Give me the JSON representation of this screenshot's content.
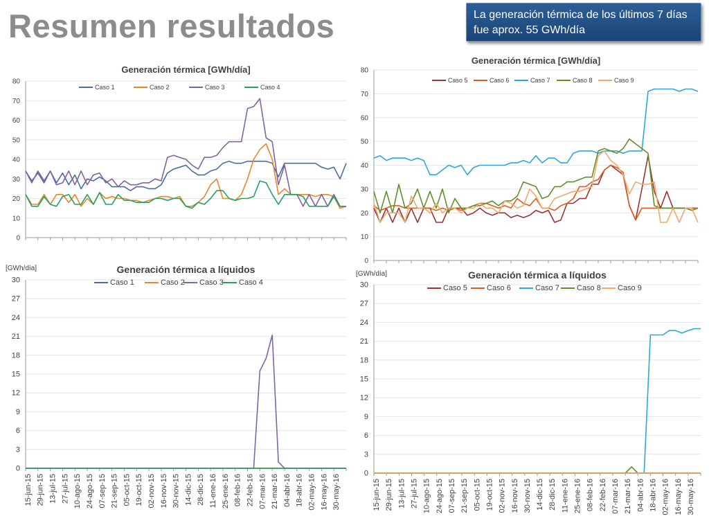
{
  "header": {
    "title": "Resumen resultados",
    "callout": "La generación térmica de los últimos 7 días fue aprox. 55 GWh/día"
  },
  "colors": {
    "caso1": "#4a6da0",
    "caso2": "#e8862e",
    "caso3": "#8064a2",
    "caso4": "#23a35a",
    "caso5": "#9b3333",
    "caso6": "#e05a1e",
    "caso7": "#2aa8d8",
    "caso8": "#5f8f2a",
    "caso9": "#f3a86a",
    "callout_bg": "#1f4e87"
  },
  "chart_data": [
    {
      "type": "line",
      "title": "Generación térmica [GWh/día]",
      "ylabel": "",
      "ylim": [
        0,
        80
      ],
      "yticks": [
        0,
        10,
        20,
        30,
        40,
        50,
        60,
        70,
        80
      ],
      "legend": "top",
      "x_count": 53,
      "series": [
        {
          "name": "Caso 1",
          "values": [
            34,
            29,
            33,
            28,
            34,
            28,
            33,
            27,
            32,
            25,
            30,
            29,
            31,
            29,
            26,
            26,
            26,
            24,
            26,
            26,
            25,
            25,
            27,
            33,
            35,
            36,
            37,
            34,
            32,
            32,
            34,
            35,
            38,
            39,
            38,
            38,
            39,
            39,
            39,
            39,
            38,
            31,
            38,
            38,
            38,
            38,
            38,
            38,
            36,
            35,
            36,
            30,
            38
          ]
        },
        {
          "name": "Caso 2",
          "values": [
            22,
            17,
            17,
            22,
            17,
            22,
            22,
            18,
            22,
            16,
            20,
            17,
            23,
            20,
            21,
            20,
            20,
            19,
            19,
            18,
            19,
            20,
            21,
            21,
            20,
            21,
            16,
            16,
            18,
            21,
            27,
            30,
            20,
            20,
            19,
            22,
            30,
            40,
            45,
            48,
            40,
            22,
            25,
            22,
            22,
            22,
            22,
            21,
            22,
            22,
            21,
            15,
            16
          ]
        },
        {
          "name": "Caso 3",
          "values": [
            34,
            28,
            34,
            29,
            34,
            27,
            28,
            34,
            27,
            34,
            27,
            32,
            33,
            28,
            30,
            26,
            29,
            27,
            27,
            28,
            28,
            30,
            29,
            41,
            42,
            41,
            40,
            37,
            35,
            41,
            41,
            42,
            46,
            49,
            49,
            49,
            66,
            67,
            71,
            51,
            49,
            27,
            37,
            22,
            22,
            16,
            22,
            16,
            22,
            16,
            22,
            16,
            16
          ]
        },
        {
          "name": "Caso 4",
          "values": [
            22,
            16,
            16,
            21,
            17,
            16,
            21,
            22,
            17,
            17,
            22,
            17,
            23,
            17,
            17,
            22,
            19,
            19,
            18,
            18,
            18,
            20,
            20,
            19,
            20,
            20,
            16,
            15,
            18,
            17,
            20,
            24,
            24,
            20,
            19,
            20,
            20,
            21,
            29,
            28,
            22,
            17,
            22,
            22,
            22,
            21,
            16,
            16,
            16,
            16,
            21,
            16,
            16
          ]
        }
      ]
    },
    {
      "type": "line",
      "title": "Generación térmica [GWh/día]",
      "ylabel": "",
      "ylim": [
        0,
        80
      ],
      "yticks": [
        0,
        10,
        20,
        30,
        40,
        50,
        60,
        70,
        80
      ],
      "legend": "top",
      "x_count": 53,
      "series": [
        {
          "name": "Caso 5",
          "values": [
            22,
            16,
            22,
            16,
            22,
            16,
            22,
            16,
            22,
            22,
            16,
            16,
            22,
            22,
            22,
            19,
            20,
            22,
            20,
            19,
            20,
            20,
            18,
            19,
            18,
            19,
            21,
            20,
            21,
            16,
            17,
            24,
            24,
            26,
            26,
            32,
            32,
            38,
            40,
            38,
            36,
            23,
            17,
            30,
            44,
            29,
            22,
            29,
            22,
            22,
            22,
            22,
            22
          ]
        },
        {
          "name": "Caso 6",
          "values": [
            23,
            21,
            22,
            23,
            23,
            22,
            22,
            22,
            22,
            22,
            21,
            22,
            21,
            22,
            21,
            22,
            23,
            24,
            24,
            23,
            22,
            23,
            22,
            26,
            24,
            23,
            26,
            22,
            22,
            21,
            23,
            24,
            26,
            31,
            31,
            33,
            34,
            38,
            40,
            39,
            37,
            23,
            17,
            22,
            22,
            22,
            22,
            22,
            22,
            22,
            22,
            22,
            22
          ]
        },
        {
          "name": "Caso 7",
          "values": [
            43,
            44,
            42,
            43,
            43,
            43,
            42,
            43,
            42,
            36,
            36,
            38,
            40,
            39,
            40,
            36,
            39,
            40,
            40,
            40,
            40,
            40,
            41,
            41,
            42,
            41,
            44,
            41,
            43,
            43,
            41,
            41,
            45,
            46,
            46,
            46,
            45,
            46,
            46,
            46,
            45,
            46,
            46,
            46,
            71,
            72,
            72,
            72,
            72,
            71,
            72,
            72,
            71
          ]
        },
        {
          "name": "Caso 8",
          "values": [
            29,
            20,
            29,
            20,
            32,
            22,
            24,
            30,
            22,
            29,
            22,
            30,
            20,
            26,
            22,
            22,
            23,
            23,
            24,
            25,
            23,
            25,
            25,
            27,
            33,
            32,
            31,
            26,
            27,
            31,
            31,
            33,
            33,
            34,
            35,
            35,
            46,
            47,
            46,
            45,
            47,
            51,
            49,
            47,
            45,
            23,
            22,
            22,
            22,
            22,
            22,
            21,
            22
          ]
        },
        {
          "name": "Caso 9",
          "values": [
            24,
            16,
            20,
            20,
            20,
            16,
            27,
            22,
            22,
            20,
            24,
            20,
            22,
            22,
            20,
            22,
            22,
            24,
            22,
            22,
            20,
            25,
            24,
            22,
            23,
            30,
            27,
            22,
            22,
            26,
            27,
            28,
            29,
            29,
            30,
            31,
            44,
            46,
            42,
            40,
            36,
            28,
            33,
            32,
            32,
            33,
            16,
            16,
            22,
            16,
            22,
            22,
            16
          ]
        }
      ]
    },
    {
      "type": "line",
      "title": "Generación térmica a líquidos",
      "ylabel": "[GWh/día]",
      "ylim": [
        0,
        30
      ],
      "yticks": [
        0,
        3,
        6,
        9,
        12,
        15,
        18,
        21,
        24,
        27,
        30
      ],
      "legend": "top",
      "x_labels": [
        "15-jun-15",
        "29-jun-15",
        "13-jul-15",
        "27-jul-15",
        "10-ago-15",
        "24-ago-15",
        "07-sep-15",
        "21-sep-15",
        "05-oct-15",
        "19-oct-15",
        "02-nov-15",
        "16-nov-15",
        "30-nov-15",
        "14-dic-15",
        "28-dic-15",
        "11-ene-16",
        "25-ene-16",
        "08-feb-16",
        "22-feb-16",
        "07-mar-16",
        "21-mar-16",
        "04-abr-16",
        "18-abr-16",
        "02-may-16",
        "16-may-16",
        "30-may-16"
      ],
      "x_count": 53,
      "series": [
        {
          "name": "Caso 1",
          "values": [
            0,
            0,
            0,
            0,
            0,
            0,
            0,
            0,
            0,
            0,
            0,
            0,
            0,
            0,
            0,
            0,
            0,
            0,
            0,
            0,
            0,
            0,
            0,
            0,
            0,
            0,
            0,
            0,
            0,
            0,
            0,
            0,
            0,
            0,
            0,
            0,
            0,
            0,
            0,
            0,
            0,
            0,
            0,
            0,
            0,
            0,
            0,
            0,
            0,
            0,
            0,
            0,
            0
          ]
        },
        {
          "name": "Caso 2",
          "values": [
            0,
            0,
            0,
            0,
            0,
            0,
            0,
            0,
            0,
            0,
            0,
            0,
            0,
            0,
            0,
            0,
            0,
            0,
            0,
            0,
            0,
            0,
            0,
            0,
            0,
            0,
            0,
            0,
            0,
            0,
            0,
            0,
            0,
            0,
            0,
            0,
            0,
            0,
            0,
            0,
            0,
            0,
            0,
            0,
            0,
            0,
            0,
            0,
            0,
            0,
            0,
            0,
            0
          ]
        },
        {
          "name": "Caso 3",
          "values": [
            0,
            0,
            0,
            0,
            0,
            0,
            0,
            0,
            0,
            0,
            0,
            0,
            0,
            0,
            0,
            0,
            0,
            0,
            0,
            0,
            0,
            0,
            0,
            0,
            0,
            0,
            0,
            0,
            0,
            0,
            0,
            0,
            0,
            0,
            0,
            0,
            0,
            0,
            15.5,
            17.5,
            21.2,
            1,
            0,
            0,
            0,
            0,
            0,
            0,
            0,
            0,
            0,
            0,
            0
          ]
        },
        {
          "name": "Caso 4",
          "values": [
            0,
            0,
            0,
            0,
            0,
            0,
            0,
            0,
            0,
            0,
            0,
            0,
            0,
            0,
            0,
            0,
            0,
            0,
            0,
            0,
            0,
            0,
            0,
            0,
            0,
            0,
            0,
            0,
            0,
            0,
            0,
            0,
            0,
            0,
            0,
            0,
            0,
            0,
            0,
            0,
            0,
            0,
            0,
            0,
            0,
            0,
            0,
            0,
            0,
            0,
            0,
            0,
            0
          ]
        }
      ]
    },
    {
      "type": "line",
      "title": "Generación térmica a líquidos",
      "ylabel": "[GWh/día]",
      "ylim": [
        0,
        30
      ],
      "yticks": [
        0,
        3,
        6,
        9,
        12,
        15,
        18,
        21,
        24,
        27,
        30
      ],
      "legend": "top",
      "x_labels": [
        "15-jun-15",
        "29-jun-15",
        "13-jul-15",
        "27-jul-15",
        "10-ago-15",
        "24-ago-15",
        "07-sep-15",
        "21-sep-15",
        "05-oct-15",
        "19-oct-15",
        "02-nov-15",
        "16-nov-15",
        "30-nov-15",
        "14-dic-15",
        "28-dic-15",
        "11-ene-16",
        "25-ene-16",
        "08-feb-16",
        "22-feb-16",
        "07-mar-16",
        "21-mar-16",
        "04-abr-16",
        "18-abr-16",
        "02-may-16",
        "16-may-16",
        "30-may-16"
      ],
      "x_count": 53,
      "series": [
        {
          "name": "Caso 5",
          "values": [
            0,
            0,
            0,
            0,
            0,
            0,
            0,
            0,
            0,
            0,
            0,
            0,
            0,
            0,
            0,
            0,
            0,
            0,
            0,
            0,
            0,
            0,
            0,
            0,
            0,
            0,
            0,
            0,
            0,
            0,
            0,
            0,
            0,
            0,
            0,
            0,
            0,
            0,
            0,
            0,
            0,
            0,
            0,
            0,
            0,
            0,
            0,
            0,
            0,
            0,
            0,
            0,
            0
          ]
        },
        {
          "name": "Caso 6",
          "values": [
            0,
            0,
            0,
            0,
            0,
            0,
            0,
            0,
            0,
            0,
            0,
            0,
            0,
            0,
            0,
            0,
            0,
            0,
            0,
            0,
            0,
            0,
            0,
            0,
            0,
            0,
            0,
            0,
            0,
            0,
            0,
            0,
            0,
            0,
            0,
            0,
            0,
            0,
            0,
            0,
            0,
            0,
            0,
            0,
            0,
            0,
            0,
            0,
            0,
            0,
            0,
            0,
            0
          ]
        },
        {
          "name": "Caso 7",
          "values": [
            0,
            0,
            0,
            0,
            0,
            0,
            0,
            0,
            0,
            0,
            0,
            0,
            0,
            0,
            0,
            0,
            0,
            0,
            0,
            0,
            0,
            0,
            0,
            0,
            0,
            0,
            0,
            0,
            0,
            0,
            0,
            0,
            0,
            0,
            0,
            0,
            0,
            0,
            0,
            0,
            0,
            0,
            0,
            0,
            22,
            22,
            22,
            22.7,
            22.7,
            22.3,
            22.7,
            23,
            23
          ]
        },
        {
          "name": "Caso 8",
          "values": [
            0,
            0,
            0,
            0,
            0,
            0,
            0,
            0,
            0,
            0,
            0,
            0,
            0,
            0,
            0,
            0,
            0,
            0,
            0,
            0,
            0,
            0,
            0,
            0,
            0,
            0,
            0,
            0,
            0,
            0,
            0,
            0,
            0,
            0,
            0,
            0,
            0,
            0,
            0,
            0,
            0,
            1,
            0,
            0,
            0,
            0,
            0,
            0,
            0,
            0,
            0,
            0,
            0
          ]
        },
        {
          "name": "Caso 9",
          "values": [
            0,
            0,
            0,
            0,
            0,
            0,
            0,
            0,
            0,
            0,
            0,
            0,
            0,
            0,
            0,
            0,
            0,
            0,
            0,
            0,
            0,
            0,
            0,
            0,
            0,
            0,
            0,
            0,
            0,
            0,
            0,
            0,
            0,
            0,
            0,
            0,
            0,
            0,
            0,
            0,
            0,
            0,
            0,
            0,
            0,
            0,
            0,
            0,
            0,
            0,
            0,
            0,
            0
          ]
        }
      ]
    }
  ]
}
